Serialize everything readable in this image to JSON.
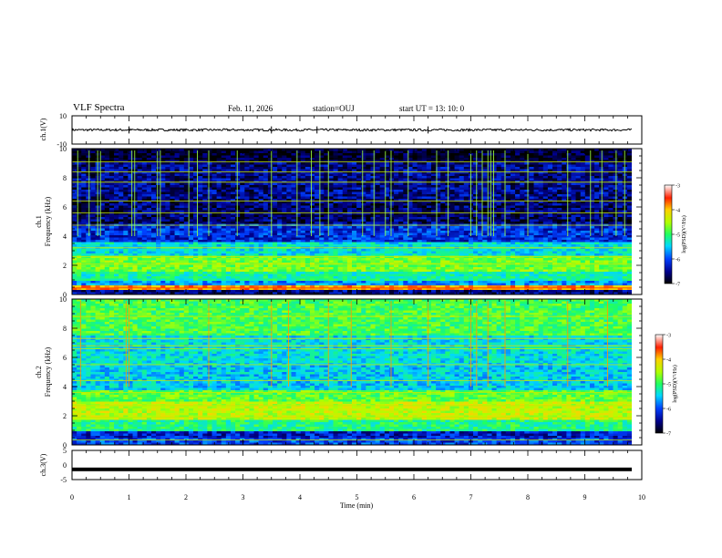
{
  "header": {
    "title": "VLF Spectra",
    "date": "Feb. 11, 2026",
    "station": "station=OUJ",
    "start": "start UT =  13: 10: 0"
  },
  "chart_data": [
    {
      "type": "line",
      "panel": "ch1-waveform",
      "ylabel": "ch.1(V)",
      "ylim": [
        -10,
        10
      ],
      "yticks": [
        "10",
        "-10"
      ],
      "xlim": [
        0,
        10
      ],
      "baseline": 0,
      "noise_amplitude": 0.5
    },
    {
      "type": "heatmap",
      "panel": "ch1-spectrogram",
      "ylabel": "ch.1\nFrequency (kHz)",
      "ylabel_line1": "ch.1",
      "ylabel_line2": "Frequency (kHz)",
      "ylim": [
        0,
        10
      ],
      "yticks": [
        "10",
        "8",
        "6",
        "4",
        "2",
        "0"
      ],
      "xlim": [
        0,
        10
      ],
      "colorbar": {
        "label": "log(PSD)(V²/Hz)",
        "range": [
          -7,
          -3
        ],
        "ticks": [
          "-3",
          "-4",
          "-5",
          "-6",
          "-7"
        ]
      },
      "band_levels": [
        {
          "f0": 0.0,
          "f1": 0.3,
          "level": -6.6
        },
        {
          "f0": 0.3,
          "f1": 0.6,
          "level": -4.0
        },
        {
          "f0": 0.6,
          "f1": 1.0,
          "level": -5.9
        },
        {
          "f0": 1.0,
          "f1": 1.6,
          "level": -5.4
        },
        {
          "f0": 1.6,
          "f1": 2.6,
          "level": -4.9
        },
        {
          "f0": 2.6,
          "f1": 3.6,
          "level": -5.6
        },
        {
          "f0": 3.6,
          "f1": 4.8,
          "level": -6.3
        },
        {
          "f0": 4.8,
          "f1": 6.5,
          "level": -6.7
        },
        {
          "f0": 6.5,
          "f1": 9.0,
          "level": -6.6
        },
        {
          "f0": 9.0,
          "f1": 10.0,
          "level": -6.9
        }
      ],
      "spike_times": [
        0.1,
        0.3,
        0.45,
        0.5,
        1.05,
        1.1,
        1.5,
        1.55,
        2.05,
        2.2,
        2.4,
        2.9,
        3.5,
        3.95,
        4.2,
        4.35,
        4.5,
        5.1,
        5.3,
        5.5,
        5.6,
        5.9,
        6.4,
        6.6,
        7.0,
        7.1,
        7.2,
        7.3,
        7.35,
        7.4,
        7.6,
        8.0,
        8.7,
        9.1,
        9.3,
        9.55,
        9.7
      ]
    },
    {
      "type": "heatmap",
      "panel": "ch2-spectrogram",
      "ylabel": "ch.2\nFrequency (kHz)",
      "ylabel_line1": "ch.2",
      "ylabel_line2": "Frequency (kHz)",
      "ylim": [
        0,
        10
      ],
      "yticks": [
        "10",
        "8",
        "6",
        "4",
        "2",
        "0"
      ],
      "xlim": [
        0,
        10
      ],
      "colorbar": {
        "label": "log(PSD)(V²/Hz)",
        "range": [
          -7,
          -3
        ],
        "ticks": [
          "-3",
          "-4",
          "-5",
          "-6",
          "-7"
        ]
      },
      "band_levels": [
        {
          "f0": 0.0,
          "f1": 0.5,
          "level": -6.2
        },
        {
          "f0": 0.5,
          "f1": 1.0,
          "level": -6.4
        },
        {
          "f0": 1.0,
          "f1": 1.7,
          "level": -5.3
        },
        {
          "f0": 1.7,
          "f1": 2.9,
          "level": -4.6
        },
        {
          "f0": 2.9,
          "f1": 3.7,
          "level": -5.0
        },
        {
          "f0": 3.7,
          "f1": 5.5,
          "level": -5.7
        },
        {
          "f0": 5.5,
          "f1": 7.5,
          "level": -5.6
        },
        {
          "f0": 7.5,
          "f1": 10.0,
          "level": -5.1
        }
      ],
      "spike_times": [
        0.15,
        0.95,
        1.0,
        2.4,
        3.5,
        3.8,
        4.5,
        4.9,
        5.6,
        6.25,
        7.0,
        7.1,
        7.3,
        7.6,
        8.7,
        9.4
      ]
    },
    {
      "type": "line",
      "panel": "ch3-waveform",
      "ylabel": "ch.3(V)",
      "ylim": [
        -5,
        5
      ],
      "yticks": [
        "5",
        "0",
        "-5"
      ],
      "xlim": [
        0,
        10
      ],
      "baseline": -1.5,
      "xlabel": "Time (min)",
      "xticks": [
        "0",
        "1",
        "2",
        "3",
        "4",
        "5",
        "6",
        "7",
        "8",
        "9",
        "10"
      ]
    }
  ]
}
